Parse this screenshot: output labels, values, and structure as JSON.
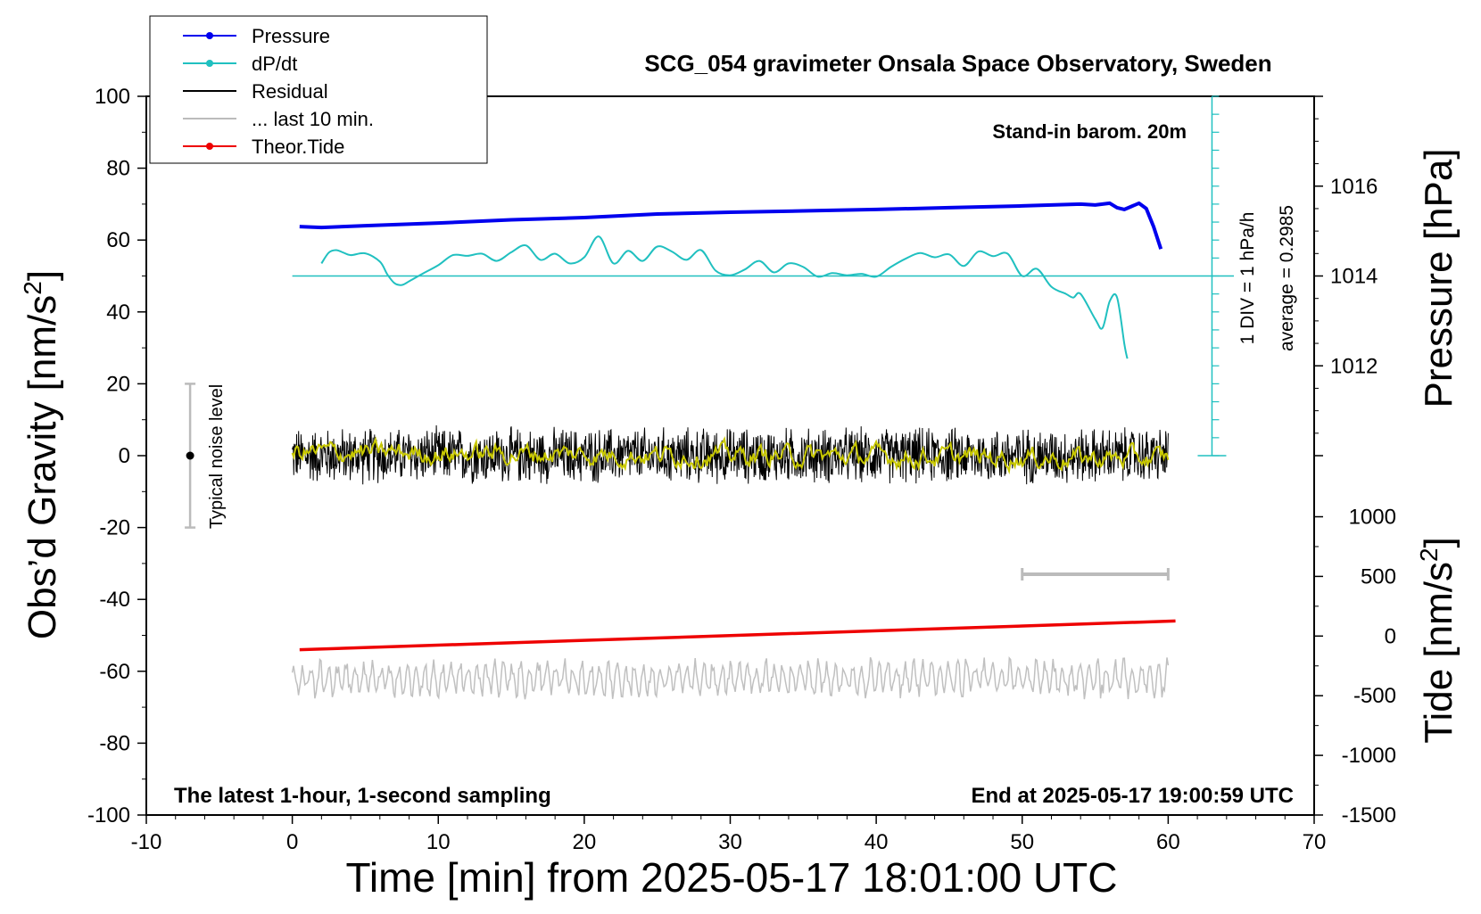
{
  "chart_data": {
    "type": "line",
    "title": "SCG_054 gravimeter Onsala Space Observatory, Sweden",
    "xlabel": "Time [min] from 2025-05-17 18:01:00 UTC",
    "ylabel_base": "Obs’d Gravity [nm/s",
    "ylabel_sup": "2",
    "ylabel_close": "]",
    "xlim": [
      -10,
      70
    ],
    "ylim": [
      -100,
      100
    ],
    "x_ticks": [
      "-10",
      "0",
      "10",
      "20",
      "30",
      "40",
      "50",
      "60",
      "70"
    ],
    "y_ticks": [
      "100",
      "80",
      "60",
      "40",
      "20",
      "0",
      "-20",
      "-40",
      "-60",
      "-80",
      "-100"
    ],
    "right_pressure": {
      "label": "Pressure [hPa]",
      "ticks": [
        "1016",
        "1014",
        "1012"
      ],
      "tick_values": [
        1016,
        1014,
        1012
      ],
      "range": [
        1010,
        1018
      ]
    },
    "right_tide": {
      "label_base": "Tide [nm/s",
      "label_sup": "2",
      "label_close": "]",
      "ticks": [
        "1000",
        "500",
        "0",
        "-500",
        "-1000",
        "-1500"
      ],
      "tick_values": [
        1000,
        500,
        0,
        -500,
        -1000,
        -1500
      ],
      "range": [
        -1500,
        1000
      ]
    },
    "legend": [
      {
        "name": "Pressure",
        "color": "#0000ee",
        "marker": true
      },
      {
        "name": "dP/dt",
        "color": "#20c0c0",
        "marker": true
      },
      {
        "name": "Residual",
        "color": "#000000",
        "marker": false
      },
      {
        "name": "... last 10 min.",
        "color": "#bbbbbb",
        "marker": false
      },
      {
        "name": "Theor.Tide",
        "color": "#ee0000",
        "marker": true
      }
    ],
    "annotations": {
      "standin": "Stand-in barom. 20m",
      "div": "1 DIV = 1 hPa/h",
      "average": "average = 0.2985",
      "noise": "Typical noise level",
      "footer_left": "The latest 1-hour, 1-second sampling",
      "footer_right": "End at 2025-05-17 19:00:59 UTC"
    },
    "noise_bar": {
      "x": -7,
      "y_low": -20,
      "y_high": 20,
      "center": 0
    },
    "last10_bar": {
      "x_start": 50,
      "x_end": 60,
      "y": -33
    },
    "dpdt_baseline_y": 50,
    "dpdt_axis": {
      "x": 63,
      "y_top": 100,
      "y_bottom": 0,
      "div": 5
    },
    "pressure_series": {
      "name": "Pressure",
      "x": [
        0.5,
        2,
        5,
        10,
        15,
        20,
        25,
        30,
        35,
        40,
        45,
        50,
        52,
        54,
        55,
        56,
        56.5,
        57,
        57.5,
        58,
        58.5,
        59,
        59.5
      ],
      "y": [
        1015.1,
        1015.08,
        1015.12,
        1015.18,
        1015.25,
        1015.3,
        1015.38,
        1015.42,
        1015.45,
        1015.48,
        1015.52,
        1015.56,
        1015.58,
        1015.6,
        1015.58,
        1015.62,
        1015.52,
        1015.48,
        1015.55,
        1015.62,
        1015.5,
        1015.1,
        1014.6
      ]
    },
    "dpdt_series": {
      "name": "dP/dt",
      "x": [
        2,
        2.5,
        3,
        3.5,
        4,
        5,
        6,
        6.5,
        7,
        7.5,
        8,
        9,
        10,
        11,
        12,
        13,
        14,
        15,
        16,
        17,
        18,
        19,
        20,
        21,
        22,
        23,
        24,
        25,
        26,
        27,
        28,
        29,
        30,
        31,
        32,
        33,
        34,
        35,
        36,
        37,
        38,
        39,
        40,
        41,
        42,
        43,
        44,
        45,
        46,
        47,
        48,
        49,
        50,
        51,
        52,
        53,
        53.5,
        54,
        55,
        55.5,
        56,
        56.5,
        57,
        57.2
      ],
      "y": [
        53.5,
        56.5,
        57.2,
        56.5,
        55.8,
        56.3,
        54,
        50.5,
        48,
        47.5,
        48.5,
        50.8,
        53,
        55.8,
        55.6,
        56.2,
        54.2,
        56.6,
        58.5,
        54.5,
        56.2,
        53.5,
        55.2,
        61,
        53.5,
        57,
        54.2,
        58.2,
        56.8,
        54.5,
        57.2,
        51.5,
        50.2,
        51.8,
        54.2,
        51,
        53.5,
        52.5,
        49.8,
        50.8,
        50.2,
        50.6,
        49.8,
        52.5,
        54.8,
        56.4,
        55.2,
        56,
        52.8,
        56.8,
        55.5,
        56.2,
        50,
        52,
        47,
        45,
        44,
        45,
        38,
        35.5,
        43,
        44,
        31,
        27
      ]
    },
    "residual_series": {
      "name": "Residual",
      "x_range": [
        0,
        60
      ],
      "y_center": 0,
      "y_spread": 8
    },
    "smooth_series": {
      "name": "... last 10 min.",
      "x_range": [
        0,
        60
      ],
      "y_center": 1,
      "y_spread": 2.5
    },
    "tide_series": {
      "name": "Theor.Tide",
      "x": [
        0.5,
        60.5
      ],
      "y": [
        -54,
        -46
      ]
    },
    "last10_series": {
      "name": "... last 10 min.",
      "x_range": [
        0,
        60
      ],
      "y_center": -62,
      "y_spread": 5
    }
  }
}
